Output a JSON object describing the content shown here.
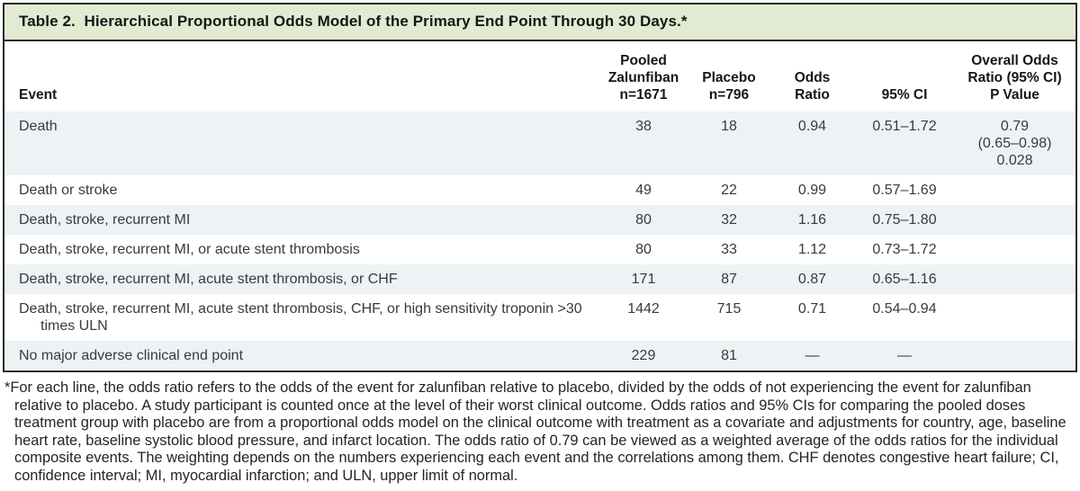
{
  "title": "Table 2.  Hierarchical Proportional Odds Model of the Primary End Point Through 30 Days.*",
  "colors": {
    "title_bar_bg": "#e2ebd2",
    "row_shade": "#edf2f5",
    "border": "#2a2a2a"
  },
  "table": {
    "columns": [
      "Event",
      "Pooled\nZalunfiban\nn=1671",
      "Placebo\nn=796",
      "Odds\nRatio",
      "95% CI",
      "Overall Odds\nRatio (95% CI)\nP Value"
    ],
    "rows": [
      {
        "event": "Death",
        "zalunfiban": "38",
        "placebo": "18",
        "odds_ratio": "0.94",
        "ci": "0.51–1.72",
        "overall": "0.79\n(0.65–0.98)\n0.028",
        "shaded": true
      },
      {
        "event": "Death or stroke",
        "zalunfiban": "49",
        "placebo": "22",
        "odds_ratio": "0.99",
        "ci": "0.57–1.69",
        "overall": "",
        "shaded": false
      },
      {
        "event": "Death, stroke, recurrent MI",
        "zalunfiban": "80",
        "placebo": "32",
        "odds_ratio": "1.16",
        "ci": "0.75–1.80",
        "overall": "",
        "shaded": true
      },
      {
        "event": "Death, stroke, recurrent MI, or acute stent thrombosis",
        "zalunfiban": "80",
        "placebo": "33",
        "odds_ratio": "1.12",
        "ci": "0.73–1.72",
        "overall": "",
        "shaded": false
      },
      {
        "event": "Death, stroke, recurrent MI, acute stent thrombosis, or CHF",
        "zalunfiban": "171",
        "placebo": "87",
        "odds_ratio": "0.87",
        "ci": "0.65–1.16",
        "overall": "",
        "shaded": true
      },
      {
        "event": "Death, stroke, recurrent MI, acute stent thrombosis, CHF, or high sensitivity troponin >30 times ULN",
        "zalunfiban": "1442",
        "placebo": "715",
        "odds_ratio": "0.71",
        "ci": "0.54–0.94",
        "overall": "",
        "shaded": false
      },
      {
        "event": "No major adverse clinical end point",
        "zalunfiban": "229",
        "placebo": "81",
        "odds_ratio": "—",
        "ci": "—",
        "overall": "",
        "shaded": true
      }
    ]
  },
  "footnote": "*For each line, the odds ratio refers to the odds of the event for zalunfiban relative to placebo, divided by the odds of not experiencing the event for zalunfiban relative to placebo. A study participant is counted once at the level of their worst clinical outcome. Odds ratios and 95% CIs for comparing the pooled doses treatment group with placebo are from a proportional odds model on the clinical outcome with treatment as a covariate and adjustments for country, age, baseline heart rate, baseline systolic blood pressure, and infarct location. The odds ratio of 0.79 can be viewed as a weighted average of the odds ratios for the individual composite events. The weighting depends on the numbers experiencing each event and the correlations among them. CHF denotes congestive heart failure; CI, confidence interval; MI, myocardial infarction; and ULN, upper limit of normal."
}
